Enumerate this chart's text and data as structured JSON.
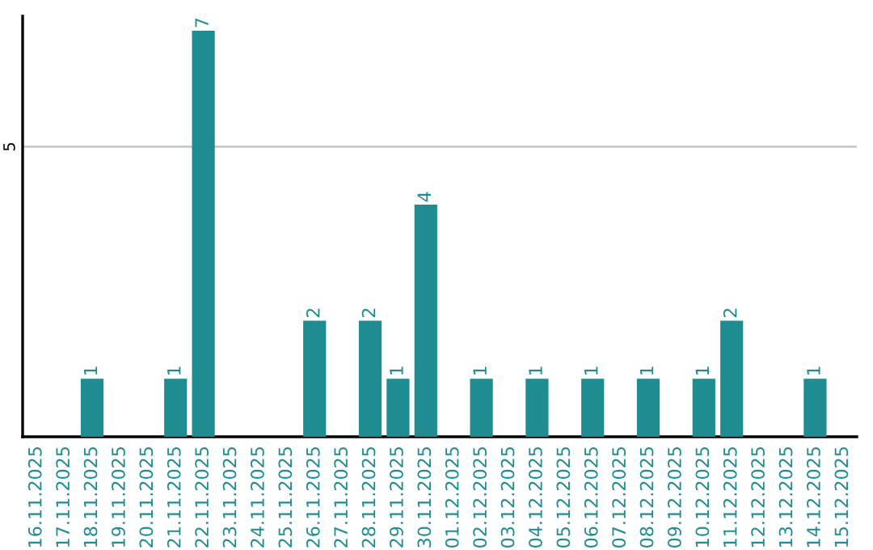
{
  "chart_data": {
    "type": "bar",
    "categories": [
      "16.11.2025",
      "17.11.2025",
      "18.11.2025",
      "19.11.2025",
      "20.11.2025",
      "21.11.2025",
      "22.11.2025",
      "23.11.2025",
      "24.11.2025",
      "25.11.2025",
      "26.11.2025",
      "27.11.2025",
      "28.11.2025",
      "29.11.2025",
      "30.11.2025",
      "01.12.2025",
      "02.12.2025",
      "03.12.2025",
      "04.12.2025",
      "05.12.2025",
      "06.12.2025",
      "07.12.2025",
      "08.12.2025",
      "09.12.2025",
      "10.12.2025",
      "11.12.2025",
      "12.12.2025",
      "13.12.2025",
      "14.12.2025",
      "15.12.2025"
    ],
    "values": [
      0,
      0,
      1,
      0,
      0,
      1,
      7,
      0,
      0,
      0,
      2,
      0,
      2,
      1,
      4,
      0,
      1,
      0,
      1,
      0,
      1,
      0,
      1,
      0,
      1,
      2,
      0,
      0,
      1,
      0
    ],
    "value_labels": [
      null,
      null,
      "1",
      null,
      null,
      "1",
      "7",
      null,
      null,
      null,
      "2",
      null,
      "2",
      "1",
      "4",
      null,
      "1",
      null,
      "1",
      null,
      "1",
      null,
      "1",
      null,
      "1",
      "2",
      null,
      null,
      "1",
      null
    ],
    "color": "#1f8c91",
    "ylim": [
      0,
      7.25
    ],
    "yticks": [
      5
    ],
    "grid": "y",
    "legend": false
  }
}
